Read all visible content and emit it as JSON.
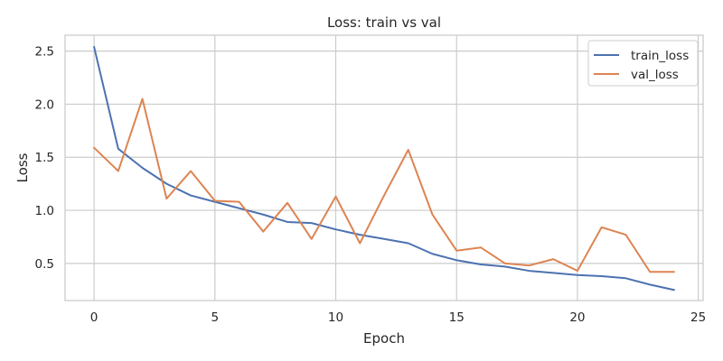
{
  "chart_data": {
    "type": "line",
    "title": "Loss: train vs val",
    "xlabel": "Epoch",
    "ylabel": "Loss",
    "x": [
      0,
      1,
      2,
      3,
      4,
      5,
      6,
      7,
      8,
      9,
      10,
      11,
      12,
      13,
      14,
      15,
      16,
      17,
      18,
      19,
      20,
      21,
      22,
      23,
      24
    ],
    "xlim": [
      -1.2,
      25.2
    ],
    "ylim": [
      0.15,
      2.65
    ],
    "xticks": [
      0,
      5,
      10,
      15,
      20,
      25
    ],
    "yticks": [
      0.5,
      1.0,
      1.5,
      2.0,
      2.5
    ],
    "xtick_labels": [
      "0",
      "5",
      "10",
      "15",
      "20",
      "25"
    ],
    "ytick_labels": [
      "0.5",
      "1.0",
      "1.5",
      "2.0",
      "2.5"
    ],
    "grid": true,
    "legend_position": "top-right",
    "series": [
      {
        "name": "train_loss",
        "color": "#4c72b0",
        "values": [
          2.54,
          1.58,
          1.4,
          1.25,
          1.14,
          1.08,
          1.02,
          0.96,
          0.89,
          0.88,
          0.82,
          0.77,
          0.73,
          0.69,
          0.59,
          0.53,
          0.49,
          0.47,
          0.43,
          0.41,
          0.39,
          0.38,
          0.36,
          0.3,
          0.25
        ]
      },
      {
        "name": "val_loss",
        "color": "#dd8452",
        "values": [
          1.59,
          1.37,
          2.05,
          1.11,
          1.37,
          1.09,
          1.08,
          0.8,
          1.07,
          0.73,
          1.13,
          0.69,
          1.14,
          1.57,
          0.96,
          0.62,
          0.65,
          0.5,
          0.48,
          0.54,
          0.43,
          0.84,
          0.77,
          0.42,
          0.42
        ]
      }
    ]
  }
}
